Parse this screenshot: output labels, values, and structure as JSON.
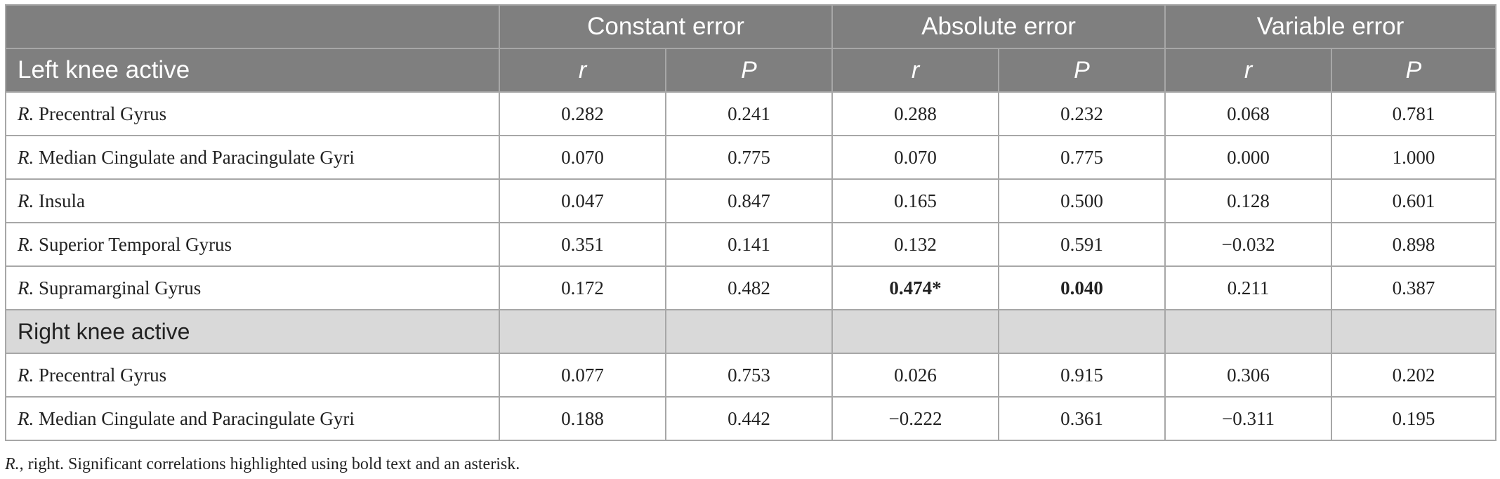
{
  "table": {
    "group_headers": [
      "Constant error",
      "Absolute error",
      "Variable error"
    ],
    "first_section_label": "Left knee active",
    "col_headers": [
      "r",
      "P",
      "r",
      "P",
      "r",
      "P"
    ],
    "left_rows": [
      {
        "prefix": "R.",
        "region": " Precentral Gyrus",
        "values": [
          "0.282",
          "0.241",
          "0.288",
          "0.232",
          "0.068",
          "0.781"
        ]
      },
      {
        "prefix": "R.",
        "region": " Median Cingulate and Paracingulate Gyri",
        "values": [
          "0.070",
          "0.775",
          "0.070",
          "0.775",
          "0.000",
          "1.000"
        ]
      },
      {
        "prefix": "R.",
        "region": " Insula",
        "values": [
          "0.047",
          "0.847",
          "0.165",
          "0.500",
          "0.128",
          "0.601"
        ]
      },
      {
        "prefix": "R.",
        "region": " Superior Temporal Gyrus",
        "values": [
          "0.351",
          "0.141",
          "0.132",
          "0.591",
          "−0.032",
          "0.898"
        ]
      },
      {
        "prefix": "R.",
        "region": " Supramarginal Gyrus",
        "values": [
          "0.172",
          "0.482",
          "0.474*",
          "0.040",
          "0.211",
          "0.387"
        ]
      }
    ],
    "second_section_label": "Right knee active",
    "right_rows": [
      {
        "prefix": "R.",
        "region": " Precentral Gyrus",
        "values": [
          "0.077",
          "0.753",
          "0.026",
          "0.915",
          "0.306",
          "0.202"
        ]
      },
      {
        "prefix": "R.",
        "region": " Median Cingulate and Paracingulate Gyri",
        "values": [
          "0.188",
          "0.442",
          "−0.222",
          "0.361",
          "−0.311",
          "0.195"
        ]
      }
    ]
  },
  "footnote": {
    "prefix": "R.",
    "text": ", right. Significant correlations highlighted using bold text and an asterisk."
  }
}
